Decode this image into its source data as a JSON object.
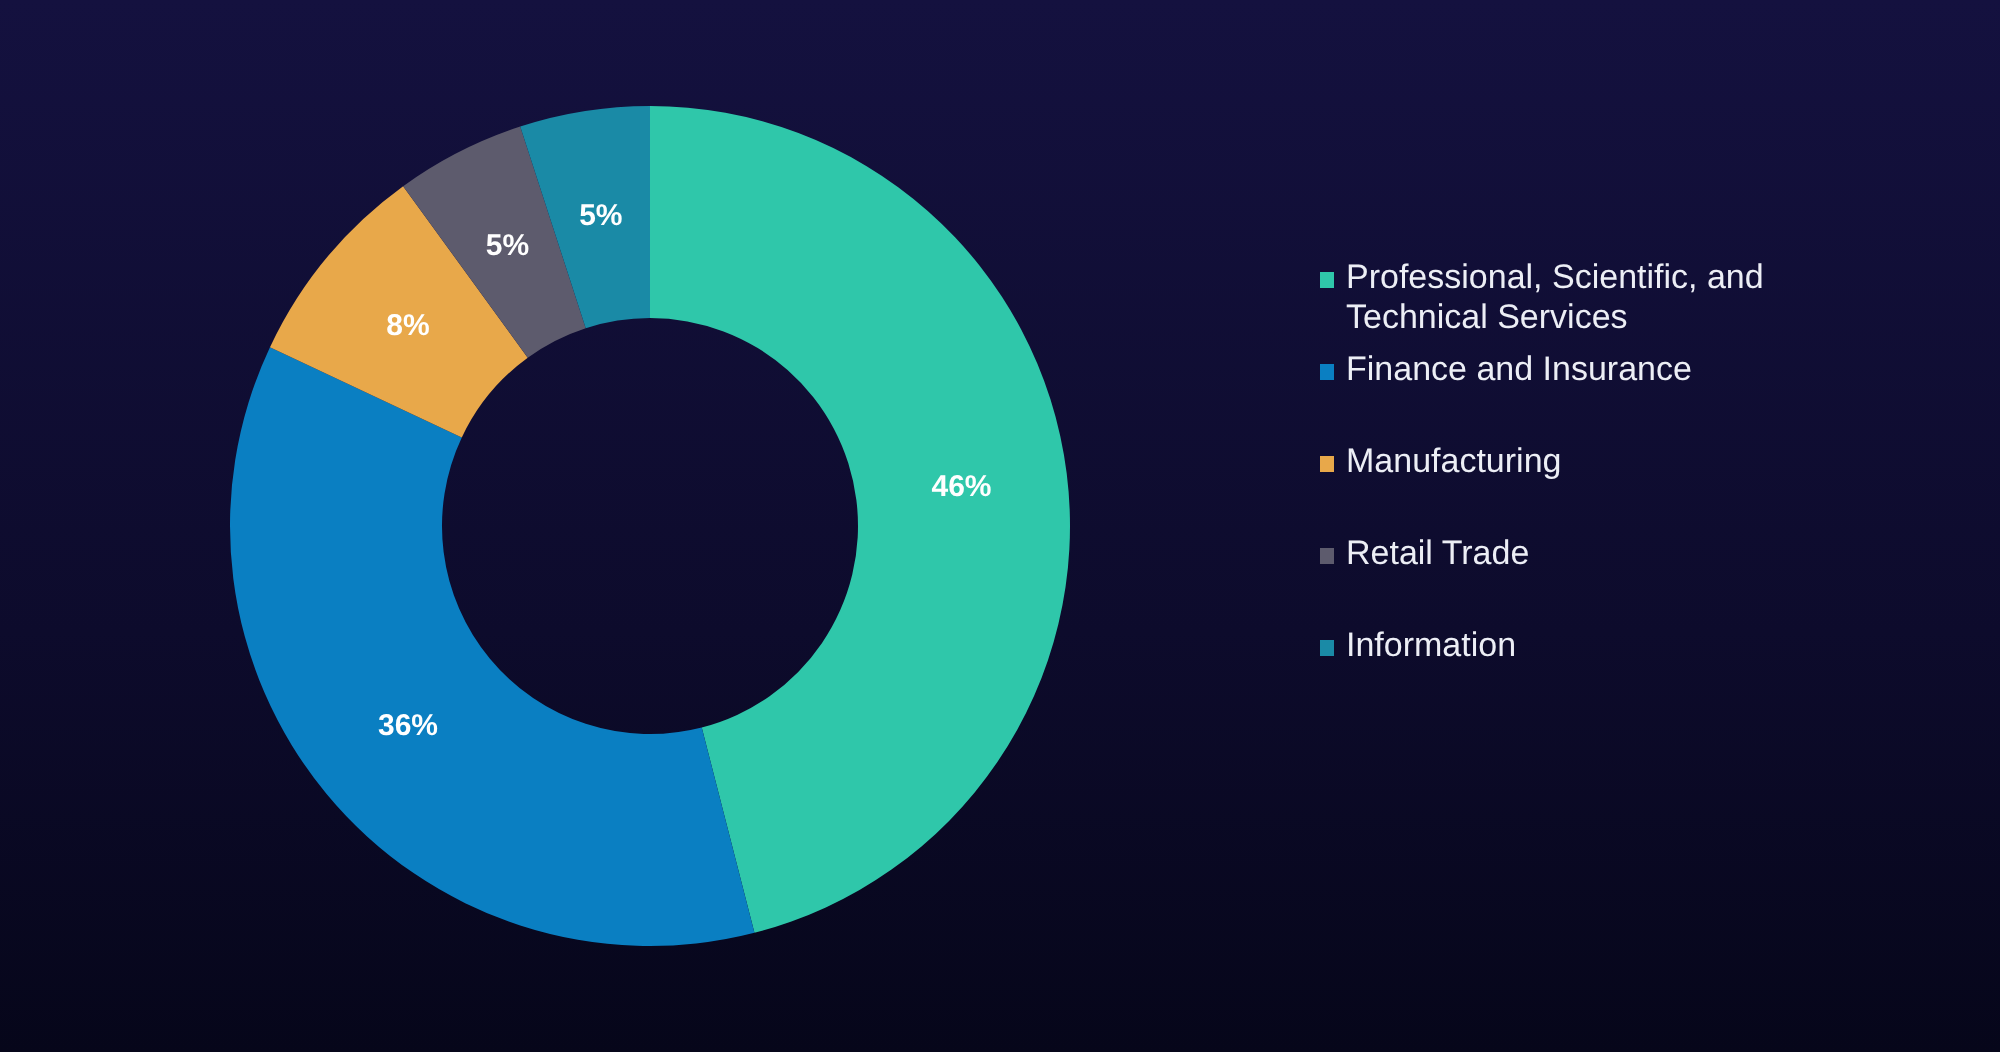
{
  "chart_data": {
    "type": "donut",
    "categories": [
      "Professional, Scientific, and Technical Services",
      "Finance and Insurance",
      "Manufacturing",
      "Retail Trade",
      "Information"
    ],
    "values": [
      46,
      36,
      8,
      5,
      5
    ],
    "colors": [
      "#2fc7aa",
      "#0a7fc2",
      "#e8a84a",
      "#5d5b6d",
      "#1a8aa6"
    ],
    "value_labels": [
      "46%",
      "36%",
      "8%",
      "5%",
      "5%"
    ],
    "legend": "right"
  }
}
